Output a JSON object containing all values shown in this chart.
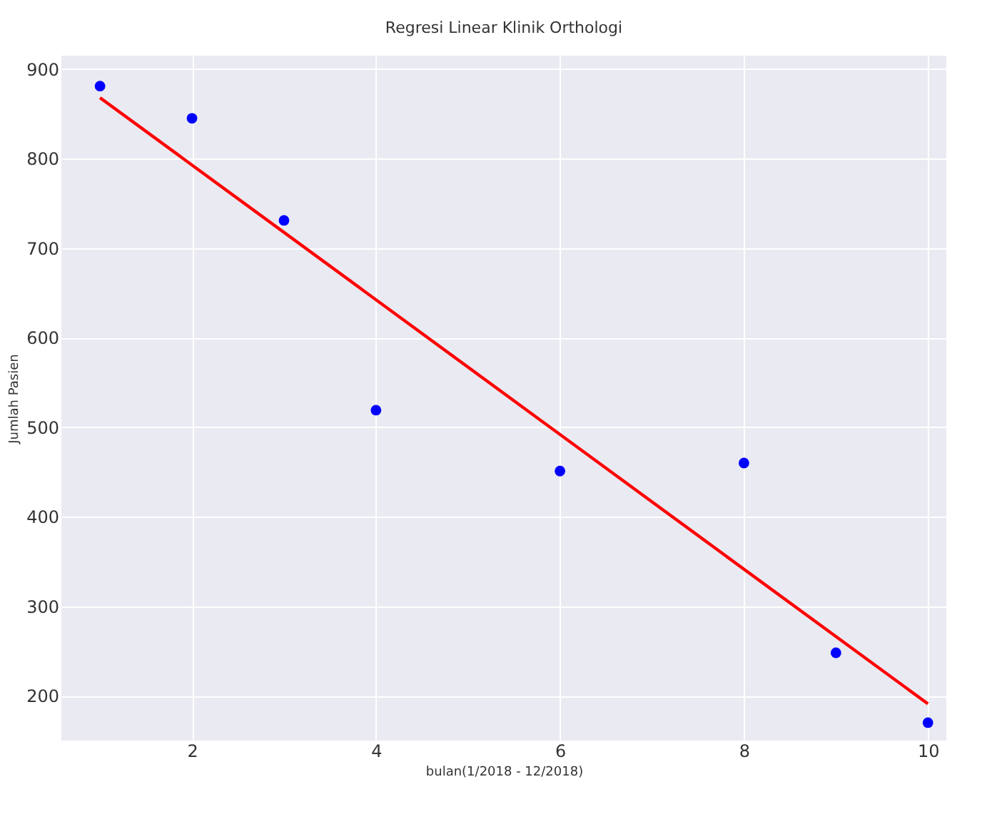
{
  "chart_data": {
    "type": "scatter",
    "title": "Regresi Linear Klinik Orthologi",
    "xlabel": "bulan(1/2018 - 12/2018)",
    "ylabel": "Jumlah Pasien",
    "series": [
      {
        "color": "#0000ff",
        "marker": "circle",
        "x": [
          1,
          2,
          3,
          4,
          6,
          8,
          9,
          10
        ],
        "values": [
          881,
          845,
          731,
          519,
          451,
          460,
          248,
          170
        ]
      },
      {
        "type": "line",
        "color": "#ff0000",
        "x": [
          1,
          10
        ],
        "values": [
          868,
          191
        ]
      }
    ],
    "xlim": [
      0.58,
      10.2
    ],
    "xticks": [
      2,
      4,
      6,
      8,
      10
    ],
    "ylim": [
      150,
      915
    ],
    "yticks": [
      200,
      300,
      400,
      500,
      600,
      700,
      800,
      900
    ],
    "grid": true
  }
}
